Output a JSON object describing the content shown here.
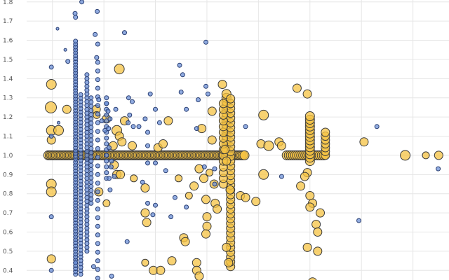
{
  "chart_data": {
    "type": "scatter",
    "title": "",
    "xlabel": "",
    "ylabel": "",
    "grid": true,
    "x_range": [
      0,
      8.2
    ],
    "y_range": [
      0.35,
      1.81
    ],
    "y_ticks": [
      {
        "value": 0.4,
        "label": "0.4"
      },
      {
        "value": 0.5,
        "label": "0.5"
      },
      {
        "value": 0.6,
        "label": "0.6"
      },
      {
        "value": 0.7,
        "label": "0.7"
      },
      {
        "value": 0.8,
        "label": "0.8"
      },
      {
        "value": 0.9,
        "label": "0.9"
      },
      {
        "value": 1.0,
        "label": "1.0"
      },
      {
        "value": 1.1,
        "label": "1.1"
      },
      {
        "value": 1.2,
        "label": "1.2"
      },
      {
        "value": 1.3,
        "label": "1.3"
      },
      {
        "value": 1.4,
        "label": "1.4"
      },
      {
        "value": 1.5,
        "label": "1.5"
      },
      {
        "value": 1.6,
        "label": "1.6"
      },
      {
        "value": 1.7,
        "label": "1.7"
      },
      {
        "value": 1.8,
        "label": "1.8"
      }
    ],
    "x_gridlines": [
      0.5,
      1.5,
      2.5,
      3.5,
      4.5,
      5.5,
      6.5,
      7.5
    ],
    "series": [
      {
        "color": "#f6c343",
        "edge_color": "#3a3a3a",
        "points": [
          [
            0.48,
            1.37,
            7
          ],
          [
            0.47,
            1.25,
            8
          ],
          [
            0.48,
            1.13,
            7
          ],
          [
            0.62,
            1.13,
            7
          ],
          [
            0.48,
            1.08,
            6
          ],
          [
            0.48,
            0.85,
            7
          ],
          [
            0.48,
            0.81,
            7
          ],
          [
            0.48,
            0.46,
            6
          ],
          [
            0.78,
            1.24,
            6
          ],
          [
            1.8,
            1.45,
            7
          ],
          [
            1.55,
            1.19,
            6
          ],
          [
            1.9,
            1.18,
            6
          ],
          [
            1.75,
            1.13,
            7
          ],
          [
            1.8,
            1.1,
            6
          ],
          [
            1.68,
            1.05,
            6
          ],
          [
            1.85,
            1.07,
            6
          ],
          [
            2.05,
            1.05,
            6
          ],
          [
            2.55,
            1.04,
            6
          ],
          [
            2.65,
            1.06,
            6
          ],
          [
            2.75,
            1.18,
            6
          ],
          [
            1.35,
            1.24,
            6
          ],
          [
            1.36,
            1.21,
            5
          ],
          [
            1.4,
            0.81,
            6
          ],
          [
            1.55,
            0.75,
            5
          ],
          [
            1.7,
            0.95,
            6
          ],
          [
            1.75,
            0.9,
            6
          ],
          [
            1.82,
            0.9,
            6
          ],
          [
            2.08,
            0.88,
            5
          ],
          [
            2.3,
            0.83,
            6
          ],
          [
            2.3,
            0.7,
            6
          ],
          [
            2.33,
            0.65,
            6
          ],
          [
            2.3,
            0.44,
            5
          ],
          [
            2.46,
            0.4,
            6
          ],
          [
            2.6,
            0.4,
            6
          ],
          [
            2.82,
            0.45,
            6
          ],
          [
            2.95,
            0.88,
            5
          ],
          [
            3.05,
            0.57,
            6
          ],
          [
            3.08,
            0.55,
            6
          ],
          [
            3.15,
            0.79,
            5
          ],
          [
            3.25,
            0.84,
            6
          ],
          [
            3.3,
            0.44,
            6
          ],
          [
            3.3,
            0.4,
            6
          ],
          [
            3.35,
            0.37,
            6
          ],
          [
            3.4,
            1.14,
            6
          ],
          [
            3.35,
            0.93,
            6
          ],
          [
            3.44,
            0.88,
            6
          ],
          [
            3.48,
            0.77,
            6
          ],
          [
            3.5,
            0.68,
            6
          ],
          [
            3.5,
            0.63,
            6
          ],
          [
            3.48,
            0.59,
            6
          ],
          [
            3.55,
            0.91,
            5
          ],
          [
            3.6,
            1.23,
            6
          ],
          [
            3.6,
            1.08,
            6
          ],
          [
            3.64,
            0.85,
            6
          ],
          [
            3.66,
            0.75,
            6
          ],
          [
            3.7,
            0.72,
            6
          ],
          [
            3.8,
            1.37,
            6
          ],
          [
            3.82,
            1.27,
            6
          ],
          [
            3.85,
            1.03,
            6
          ],
          [
            3.88,
            0.97,
            6
          ],
          [
            3.88,
            0.52,
            6
          ],
          [
            3.92,
            0.44,
            6
          ],
          [
            3.95,
            0.82,
            6
          ],
          [
            4.15,
            0.79,
            6
          ],
          [
            4.25,
            0.78,
            6
          ],
          [
            4.45,
            0.76,
            6
          ],
          [
            4.6,
            0.9,
            7
          ],
          [
            4.6,
            1.21,
            7
          ],
          [
            4.55,
            1.06,
            6
          ],
          [
            4.7,
            1.05,
            7
          ],
          [
            4.9,
            1.07,
            6
          ],
          [
            4.95,
            1.05,
            6
          ],
          [
            5.25,
            1.35,
            6
          ],
          [
            5.45,
            1.32,
            6
          ],
          [
            5.45,
            0.91,
            6
          ],
          [
            5.4,
            0.89,
            6
          ],
          [
            5.32,
            0.84,
            6
          ],
          [
            5.5,
            0.79,
            6
          ],
          [
            5.55,
            0.75,
            6
          ],
          [
            5.5,
            0.73,
            6
          ],
          [
            5.7,
            0.7,
            6
          ],
          [
            5.62,
            0.64,
            6
          ],
          [
            5.65,
            0.6,
            6
          ],
          [
            5.45,
            0.52,
            6
          ],
          [
            5.65,
            0.5,
            6
          ],
          [
            5.55,
            0.34,
            6
          ],
          [
            6.55,
            1.07,
            6
          ],
          [
            7.35,
            1.0,
            7
          ],
          [
            7.75,
            1.0,
            5
          ],
          [
            8.0,
            1.0,
            6
          ]
        ],
        "dense_runs": [
          {
            "axis": "h",
            "from": 0.42,
            "to": 4.25,
            "at": 1.0,
            "step": 0.03,
            "r": 6.5
          },
          {
            "axis": "h",
            "from": 5.05,
            "to": 5.8,
            "at": 1.0,
            "step": 0.04,
            "r": 6.5
          },
          {
            "axis": "v",
            "from": 0.98,
            "to": 1.33,
            "at": 3.88,
            "step": 0.02,
            "r": 6.5
          },
          {
            "axis": "v",
            "from": 0.42,
            "to": 1.3,
            "at": 3.96,
            "step": 0.025,
            "r": 6
          },
          {
            "axis": "v",
            "from": 0.85,
            "to": 1.25,
            "at": 3.82,
            "step": 0.03,
            "r": 6
          },
          {
            "axis": "v",
            "from": 0.97,
            "to": 1.21,
            "at": 5.5,
            "step": 0.018,
            "r": 6.5
          },
          {
            "axis": "v",
            "from": 1.0,
            "to": 1.12,
            "at": 5.8,
            "step": 0.02,
            "r": 6
          }
        ]
      },
      {
        "color": "#6b8fd6",
        "edge_color": "#2a3f73",
        "points": [
          [
            0.48,
            1.46,
            3
          ],
          [
            0.48,
            1.1,
            3
          ],
          [
            0.48,
            0.4,
            3
          ],
          [
            0.48,
            0.68,
            3
          ],
          [
            0.6,
            1.66,
            2
          ],
          [
            0.62,
            1.17,
            2
          ],
          [
            0.75,
            1.55,
            2
          ],
          [
            0.8,
            1.49,
            3
          ],
          [
            1.07,
            1.8,
            3
          ],
          [
            0.94,
            1.74,
            3
          ],
          [
            0.95,
            1.72,
            3
          ],
          [
            1.37,
            1.75,
            3
          ],
          [
            1.33,
            1.63,
            3
          ],
          [
            1.38,
            1.58,
            3
          ],
          [
            1.36,
            1.51,
            3
          ],
          [
            1.4,
            1.29,
            3
          ],
          [
            1.46,
            1.18,
            3
          ],
          [
            1.52,
            1.13,
            3
          ],
          [
            1.59,
            1.14,
            3
          ],
          [
            1.6,
            1.04,
            3
          ],
          [
            1.65,
            0.97,
            3
          ],
          [
            1.55,
            1.27,
            3
          ],
          [
            1.58,
            1.23,
            3
          ],
          [
            1.62,
            1.19,
            3
          ],
          [
            1.9,
            1.64,
            3
          ],
          [
            1.98,
            1.3,
            3
          ],
          [
            2.0,
            1.21,
            3
          ],
          [
            2.05,
            1.28,
            3
          ],
          [
            2.18,
            1.15,
            3
          ],
          [
            2.3,
            1.19,
            3
          ],
          [
            2.4,
            1.32,
            3
          ],
          [
            2.35,
            1.12,
            3
          ],
          [
            2.5,
            1.24,
            3
          ],
          [
            1.73,
            1.24,
            3
          ],
          [
            2.07,
            1.15,
            3
          ],
          [
            1.97,
            1.17,
            3
          ],
          [
            2.58,
            1.17,
            3
          ],
          [
            2.35,
            1.05,
            3
          ],
          [
            2.35,
            0.96,
            3
          ],
          [
            2.5,
            0.96,
            3
          ],
          [
            2.7,
            0.92,
            3
          ],
          [
            1.64,
            0.94,
            3
          ],
          [
            1.7,
            0.89,
            3
          ],
          [
            1.6,
            0.88,
            3
          ],
          [
            2.25,
            0.86,
            3
          ],
          [
            2.35,
            0.75,
            3
          ],
          [
            2.5,
            0.74,
            3
          ],
          [
            2.45,
            0.69,
            3
          ],
          [
            2.8,
            0.68,
            3
          ],
          [
            2.88,
            0.78,
            3
          ],
          [
            3.0,
            1.33,
            3
          ],
          [
            3.1,
            1.24,
            3
          ],
          [
            3.48,
            1.36,
            3
          ],
          [
            3.52,
            1.32,
            3
          ],
          [
            3.33,
            1.29,
            3
          ],
          [
            3.3,
            1.14,
            3
          ],
          [
            3.45,
            0.94,
            3
          ],
          [
            3.65,
            0.85,
            3
          ],
          [
            3.65,
            0.93,
            3
          ],
          [
            3.48,
            1.59,
            3
          ],
          [
            3.03,
            1.42,
            3
          ],
          [
            2.97,
            1.47,
            3
          ],
          [
            4.25,
            1.15,
            3
          ],
          [
            4.95,
            0.89,
            3
          ],
          [
            6.45,
            0.66,
            3
          ],
          [
            6.8,
            1.15,
            3
          ],
          [
            7.99,
            0.93,
            3
          ],
          [
            3.1,
            0.73,
            3
          ],
          [
            1.3,
            0.42,
            3
          ],
          [
            0.95,
            0.44,
            3
          ],
          [
            1.65,
            0.37,
            3
          ],
          [
            1.62,
            0.82,
            3
          ],
          [
            1.95,
            0.55,
            3
          ]
        ],
        "dense_runs": [
          {
            "axis": "v",
            "from": 0.38,
            "to": 1.6,
            "at": 0.95,
            "step": 0.015,
            "r": 3
          },
          {
            "axis": "v",
            "from": 0.38,
            "to": 1.32,
            "at": 1.05,
            "step": 0.018,
            "r": 3
          },
          {
            "axis": "v",
            "from": 0.5,
            "to": 1.42,
            "at": 1.17,
            "step": 0.02,
            "r": 3
          },
          {
            "axis": "v",
            "from": 0.75,
            "to": 1.32,
            "at": 1.25,
            "step": 0.022,
            "r": 3
          },
          {
            "axis": "v",
            "from": 0.36,
            "to": 1.5,
            "at": 1.38,
            "step": 0.045,
            "r": 3
          },
          {
            "axis": "v",
            "from": 0.88,
            "to": 1.3,
            "at": 1.55,
            "step": 0.03,
            "r": 3
          }
        ]
      }
    ]
  }
}
